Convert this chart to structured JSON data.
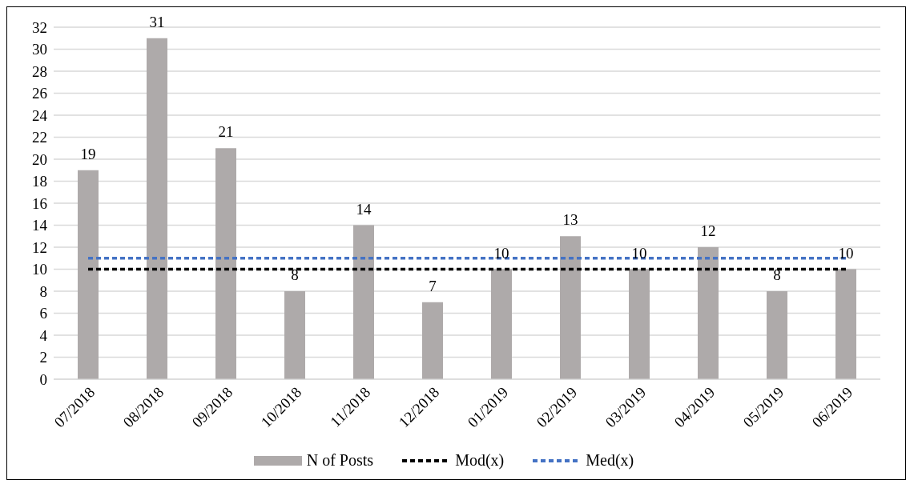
{
  "chart_data": {
    "type": "bar",
    "categories": [
      "07/2018",
      "08/2018",
      "09/2018",
      "10/2018",
      "11/2018",
      "12/2018",
      "01/2019",
      "02/2019",
      "03/2019",
      "04/2019",
      "05/2019",
      "06/2019"
    ],
    "series": [
      {
        "name": "N of Posts",
        "color": "#aeaaaa",
        "values": [
          19,
          31,
          21,
          8,
          14,
          7,
          10,
          13,
          10,
          12,
          8,
          10
        ],
        "value_labels": [
          "19",
          "31",
          "21",
          "8",
          "14",
          "7",
          "10",
          "13",
          "10",
          "12",
          "8",
          "10"
        ]
      },
      {
        "name": "Mod(x)",
        "type": "line",
        "color": "#000000",
        "line_style": "dashed",
        "values": [
          10,
          10,
          10,
          10,
          10,
          10,
          10,
          10,
          10,
          10,
          10,
          10
        ]
      },
      {
        "name": "Med(x)",
        "type": "line",
        "color": "#4472c4",
        "line_style": "dashed",
        "values": [
          11,
          11,
          11,
          11,
          11,
          11,
          11,
          11,
          11,
          11,
          11,
          11
        ]
      }
    ],
    "ylim": [
      0,
      32
    ],
    "yticks": [
      0,
      2,
      4,
      6,
      8,
      10,
      12,
      14,
      16,
      18,
      20,
      22,
      24,
      26,
      28,
      30,
      32
    ],
    "grid": "y",
    "legend": "bottom",
    "marker": "none"
  }
}
